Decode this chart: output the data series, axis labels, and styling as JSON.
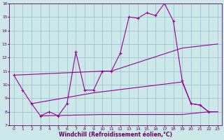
{
  "bg_color": "#cce8e8",
  "line_color": "#990099",
  "grid_color": "#99bbcc",
  "xlabel": "Windchill (Refroidissement éolien,°C)",
  "xlim_min": -0.5,
  "xlim_max": 23.5,
  "ylim_min": 7,
  "ylim_max": 16,
  "xticks": [
    0,
    1,
    2,
    3,
    4,
    5,
    6,
    7,
    8,
    9,
    10,
    11,
    12,
    13,
    14,
    15,
    16,
    17,
    18,
    19,
    20,
    21,
    22,
    23
  ],
  "yticks": [
    7,
    8,
    9,
    10,
    11,
    12,
    13,
    14,
    15,
    16
  ],
  "main_x": [
    0,
    1,
    2,
    3,
    4,
    5,
    6,
    7,
    8,
    9,
    10,
    11,
    12,
    13,
    14,
    15,
    16,
    17,
    18,
    19,
    20,
    21,
    22
  ],
  "main_y": [
    10.7,
    9.6,
    8.6,
    7.7,
    8.0,
    7.7,
    8.6,
    12.4,
    9.6,
    9.6,
    11.0,
    11.0,
    12.3,
    15.0,
    14.9,
    15.3,
    15.1,
    16.0,
    14.7,
    10.3,
    8.6,
    8.5,
    8.0
  ],
  "upper_diag_x": [
    0,
    10,
    11,
    19,
    23
  ],
  "upper_diag_y": [
    10.7,
    11.0,
    11.0,
    12.7,
    13.0
  ],
  "mid_rise_x": [
    2,
    9,
    19,
    20,
    21,
    22,
    23
  ],
  "mid_rise_y": [
    8.6,
    9.4,
    10.2,
    8.6,
    8.5,
    8.0,
    8.0
  ],
  "bottom_flat_x": [
    3,
    10,
    19,
    22,
    23
  ],
  "bottom_flat_y": [
    7.7,
    7.8,
    7.8,
    8.0,
    8.0
  ]
}
